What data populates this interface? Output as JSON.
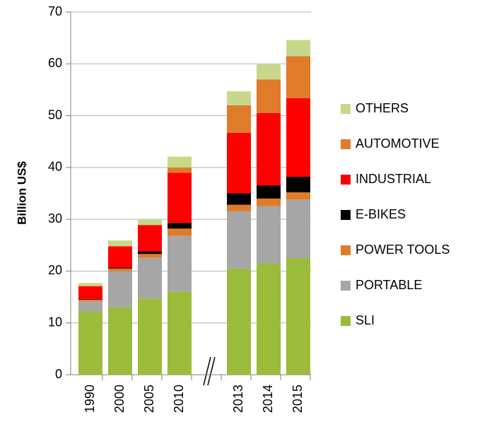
{
  "chart_data": {
    "type": "bar",
    "stacked": true,
    "y_label": "Billion US$",
    "categories": [
      "1990",
      "2000",
      "2005",
      "2010",
      null,
      "2013",
      "2014",
      "2015"
    ],
    "series": [
      {
        "name": "SLI",
        "color": "#9bbb3b",
        "values": [
          12.2,
          13,
          14.7,
          16,
          null,
          20.5,
          21.5,
          22.5
        ]
      },
      {
        "name": "PORTABLE",
        "color": "#a6a6a6",
        "values": [
          2.0,
          7,
          7.9,
          10.8,
          null,
          11,
          11,
          11.3
        ]
      },
      {
        "name": "POWER TOOLS",
        "color": "#e07b2a",
        "values": [
          0.3,
          0.5,
          0.7,
          1.4,
          null,
          1.3,
          1.5,
          1.4
        ]
      },
      {
        "name": "E-BIKES",
        "color": "#000000",
        "values": [
          0.1,
          0.2,
          0.5,
          1.1,
          null,
          2.2,
          2.5,
          3
        ]
      },
      {
        "name": "INDUSTRIAL",
        "color": "#ff0000",
        "values": [
          2.5,
          4.1,
          5.1,
          9.7,
          null,
          11.7,
          14,
          15.2
        ]
      },
      {
        "name": "AUTOMOTIVE",
        "color": "#e07b2a",
        "values": [
          0,
          0,
          0,
          1.0,
          null,
          5.3,
          6.5,
          8.1
        ]
      },
      {
        "name": "OTHERS",
        "color": "#c6d98a",
        "values": [
          0.6,
          1.1,
          1.1,
          2.1,
          null,
          2.7,
          2.9,
          3.1
        ]
      }
    ],
    "ylim": [
      0,
      70
    ],
    "yticks": [
      0,
      10,
      20,
      30,
      40,
      50,
      60,
      70
    ],
    "grid": true,
    "legend": "right"
  }
}
